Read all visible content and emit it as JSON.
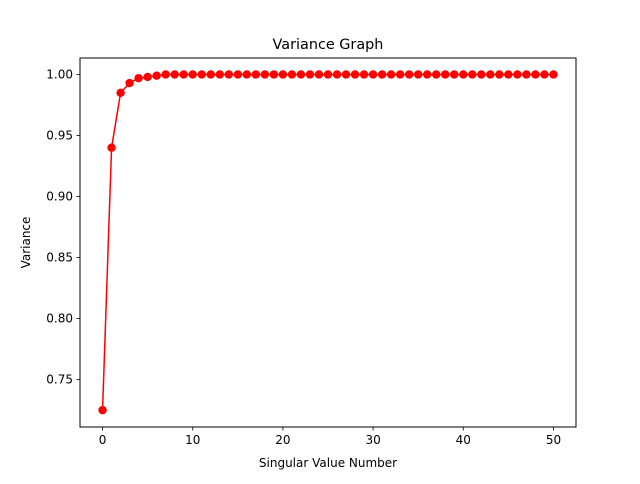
{
  "chart_data": {
    "type": "line",
    "title": "Variance Graph",
    "xlabel": "Singular Value Number",
    "ylabel": "Variance",
    "xlim": [
      -2.5,
      52.5
    ],
    "ylim": [
      0.7112,
      1.0135
    ],
    "xticks": [
      0,
      10,
      20,
      30,
      40,
      50
    ],
    "xtick_labels": [
      "0",
      "10",
      "20",
      "30",
      "40",
      "50"
    ],
    "yticks": [
      0.75,
      0.8,
      0.85,
      0.9,
      0.95,
      1.0
    ],
    "ytick_labels": [
      "0.75",
      "0.80",
      "0.85",
      "0.90",
      "0.95",
      "1.00"
    ],
    "grid": false,
    "series": [
      {
        "color": "#ff0000",
        "marker": "circle",
        "x": [
          0,
          1,
          2,
          3,
          4,
          5,
          6,
          7,
          8,
          9,
          10,
          11,
          12,
          13,
          14,
          15,
          16,
          17,
          18,
          19,
          20,
          21,
          22,
          23,
          24,
          25,
          26,
          27,
          28,
          29,
          30,
          31,
          32,
          33,
          34,
          35,
          36,
          37,
          38,
          39,
          40,
          41,
          42,
          43,
          44,
          45,
          46,
          47,
          48,
          49,
          50
        ],
        "values": [
          0.725,
          0.94,
          0.985,
          0.993,
          0.997,
          0.998,
          0.999,
          1.0,
          1.0,
          1.0,
          1.0,
          1.0,
          1.0,
          1.0,
          1.0,
          1.0,
          1.0,
          1.0,
          1.0,
          1.0,
          1.0,
          1.0,
          1.0,
          1.0,
          1.0,
          1.0,
          1.0,
          1.0,
          1.0,
          1.0,
          1.0,
          1.0,
          1.0,
          1.0,
          1.0,
          1.0,
          1.0,
          1.0,
          1.0,
          1.0,
          1.0,
          1.0,
          1.0,
          1.0,
          1.0,
          1.0,
          1.0,
          1.0,
          1.0,
          1.0,
          1.0
        ]
      }
    ]
  }
}
